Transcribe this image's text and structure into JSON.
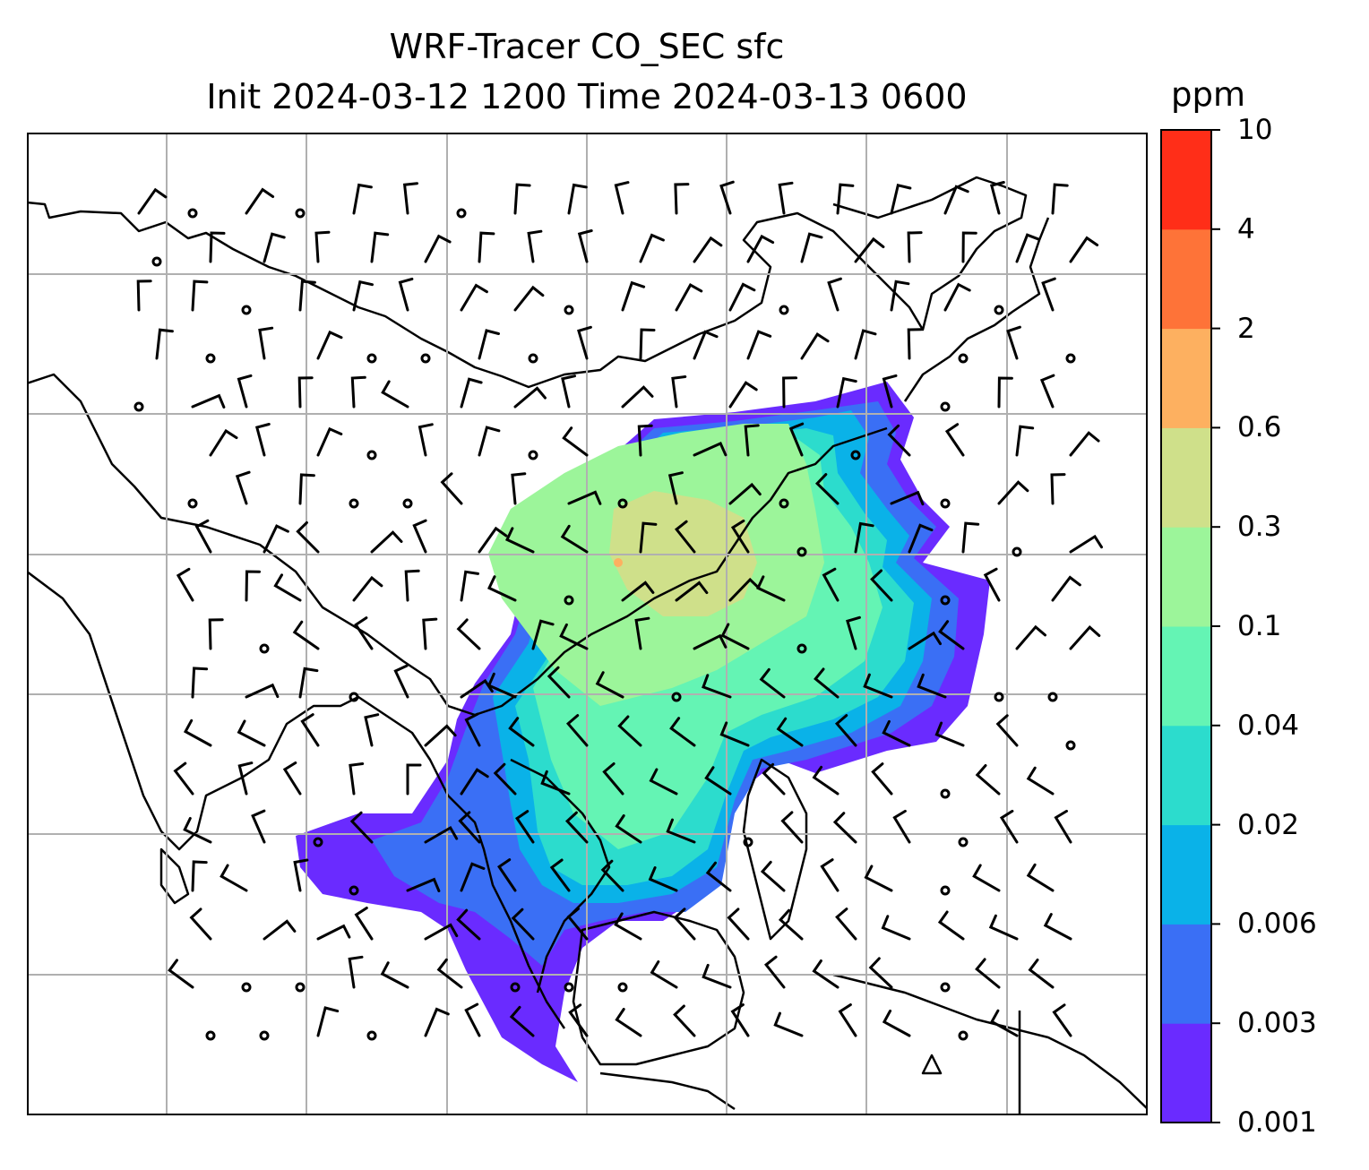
{
  "title": {
    "line1": "WRF-Tracer CO_SEC sfc",
    "line2": "Init 2024-03-12 1200 Time 2024-03-13 0600"
  },
  "colorbar": {
    "unit": "ppm",
    "ticks": [
      "10",
      "4",
      "2",
      "0.6",
      "0.3",
      "0.1",
      "0.04",
      "0.02",
      "0.006",
      "0.003",
      "0.001"
    ],
    "colors": [
      "#6a2bff",
      "#3a6ff5",
      "#0ab2e8",
      "#2cdccd",
      "#64f4b4",
      "#9cf59a",
      "#cfe08a",
      "#fdb060",
      "#fe7338",
      "#ff2e18"
    ]
  },
  "map": {
    "background": "#ffffff",
    "gridline_color": "#b0b0b0",
    "coastline_color": "#000000",
    "field_name": "CO_SEC",
    "wind_symbols": "barbs"
  }
}
